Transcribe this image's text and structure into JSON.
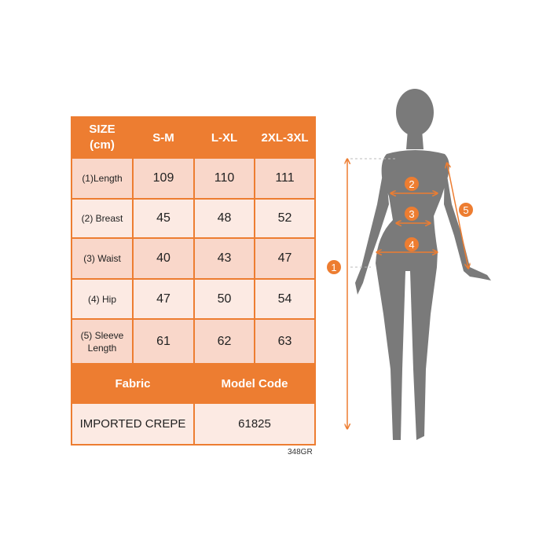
{
  "table": {
    "header": [
      "SIZE (cm)",
      "S-M",
      "L-XL",
      "2XL-3XL"
    ],
    "header_lines": [
      "SIZE",
      "(cm)"
    ],
    "rows": [
      {
        "label": "(1)Length",
        "values": [
          "109",
          "110",
          "111"
        ]
      },
      {
        "label": "(2) Breast",
        "values": [
          "45",
          "48",
          "52"
        ]
      },
      {
        "label": "(3) Waist",
        "values": [
          "40",
          "43",
          "47"
        ]
      },
      {
        "label": "(4) Hip",
        "values": [
          "47",
          "50",
          "54"
        ]
      },
      {
        "label_lines": [
          "(5) Sleeve",
          "Length"
        ],
        "values": [
          "61",
          "62",
          "63"
        ]
      }
    ],
    "footer_header": [
      "Fabric",
      "Model Code"
    ],
    "footer_values": [
      "IMPORTED CREPE",
      "61825"
    ]
  },
  "code": "348GR",
  "figure": {
    "markers": [
      "1",
      "2",
      "3",
      "4",
      "5"
    ]
  },
  "colors": {
    "accent": "#ed7d31",
    "silhouette": "#7a7a7a",
    "row_dark": "#f9d7ca",
    "row_light": "#fceae3"
  }
}
